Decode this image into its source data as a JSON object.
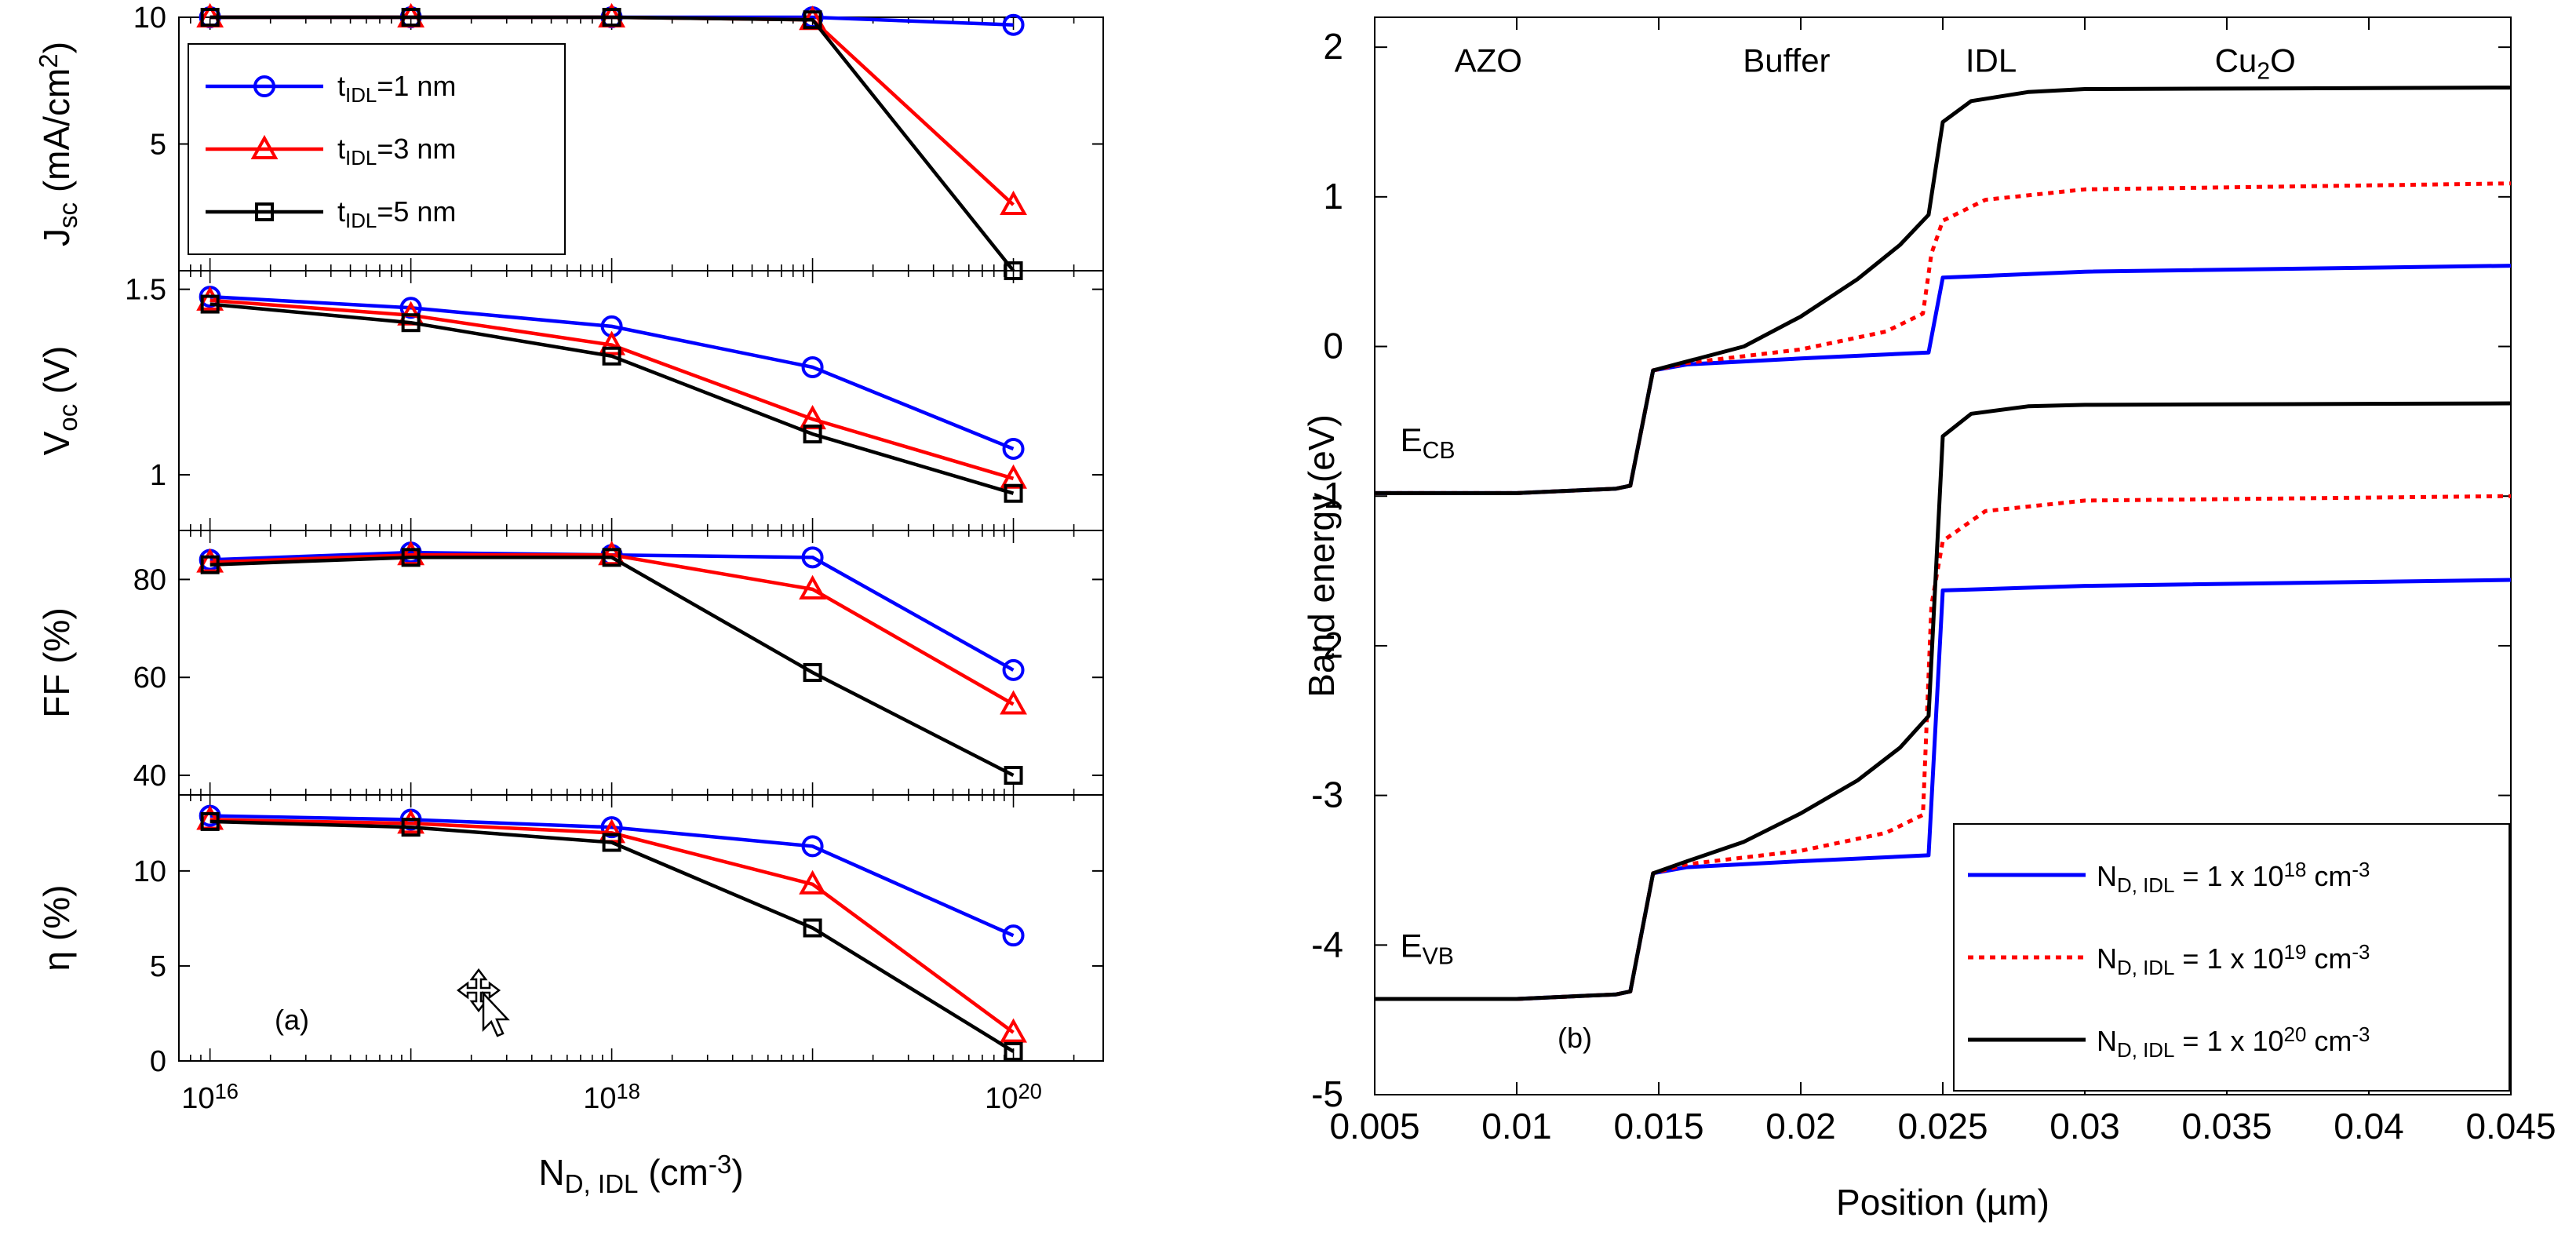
{
  "colors": {
    "series1": "#0000ff",
    "series2": "#ff0000",
    "series3": "#000000",
    "axis": "#000000",
    "background": "#ffffff"
  },
  "chart_data": [
    {
      "type": "line",
      "panel_label": "(a)",
      "x_scale": "log",
      "x": [
        1e+16,
        1e+17,
        1e+18,
        1e+19,
        1e+20
      ],
      "x_tick_labels": [
        "10",
        "10",
        "10"
      ],
      "x_tick_exponents": [
        "16",
        "18",
        "20"
      ],
      "xlabel": {
        "main": "N",
        "sub": "D, IDL",
        "tail": " (cm",
        "sup": "-3",
        "end": ")"
      },
      "legend": [
        {
          "pre": "t",
          "sub": "IDL",
          "post": "=1 nm",
          "marker": "circle"
        },
        {
          "pre": "t",
          "sub": "IDL",
          "post": "=3 nm",
          "marker": "triangle"
        },
        {
          "pre": "t",
          "sub": "IDL",
          "post": "=5 nm",
          "marker": "square"
        }
      ],
      "legend_position": "top-left",
      "subplots": [
        {
          "ylabel": {
            "main": "J",
            "sub": "sc",
            "tail": " (mA/cm",
            "sup": "2",
            "end": ")"
          },
          "ylim": [
            0,
            10
          ],
          "yticks": [
            "5",
            "10"
          ],
          "ytick_values": [
            5,
            10
          ],
          "series": [
            {
              "name": "tIDL=1 nm",
              "values": [
                10,
                10,
                10,
                10,
                9.7
              ]
            },
            {
              "name": "tIDL=3 nm",
              "values": [
                10,
                10,
                10,
                9.9,
                2.6
              ]
            },
            {
              "name": "tIDL=5 nm",
              "values": [
                10,
                10,
                10,
                9.9,
                0
              ]
            }
          ]
        },
        {
          "ylabel": {
            "main": "V",
            "sub": "oc",
            "tail": " (V)",
            "sup": "",
            "end": ""
          },
          "ylim": [
            0.85,
            1.55
          ],
          "yticks": [
            "1",
            "1.5"
          ],
          "ytick_values": [
            1,
            1.5
          ],
          "series": [
            {
              "name": "tIDL=1 nm",
              "values": [
                1.48,
                1.45,
                1.4,
                1.29,
                1.07
              ]
            },
            {
              "name": "tIDL=3 nm",
              "values": [
                1.47,
                1.43,
                1.35,
                1.15,
                0.99
              ]
            },
            {
              "name": "tIDL=5 nm",
              "values": [
                1.46,
                1.41,
                1.32,
                1.11,
                0.95
              ]
            }
          ]
        },
        {
          "ylabel": {
            "main": "FF (%)",
            "sub": "",
            "tail": "",
            "sup": "",
            "end": ""
          },
          "ylim": [
            36,
            90
          ],
          "yticks": [
            "40",
            "60",
            "80"
          ],
          "ytick_values": [
            40,
            60,
            80
          ],
          "series": [
            {
              "name": "tIDL=1 nm",
              "values": [
                84,
                85.5,
                85,
                84.5,
                61.5
              ]
            },
            {
              "name": "tIDL=3 nm",
              "values": [
                83.5,
                85,
                85,
                78,
                54.5
              ]
            },
            {
              "name": "tIDL=5 nm",
              "values": [
                83,
                84.5,
                84.5,
                61,
                40
              ]
            }
          ]
        },
        {
          "ylabel": {
            "main": "η (%)",
            "sub": "",
            "tail": "",
            "sup": "",
            "end": ""
          },
          "ylim": [
            0,
            14
          ],
          "yticks": [
            "0",
            "5",
            "10"
          ],
          "ytick_values": [
            0,
            5,
            10
          ],
          "series": [
            {
              "name": "tIDL=1 nm",
              "values": [
                12.9,
                12.7,
                12.3,
                11.3,
                6.6
              ]
            },
            {
              "name": "tIDL=3 nm",
              "values": [
                12.7,
                12.5,
                12.0,
                9.3,
                1.5
              ]
            },
            {
              "name": "tIDL=5 nm",
              "values": [
                12.6,
                12.3,
                11.5,
                7.0,
                0.5
              ]
            }
          ]
        }
      ]
    },
    {
      "type": "line",
      "panel_label": "(b)",
      "xlabel": "Position (µm)",
      "ylabel": "Band energy (eV)",
      "xlim": [
        0.005,
        0.045
      ],
      "ylim": [
        -5,
        2.2
      ],
      "xticks": [
        "0.005",
        "0.01",
        "0.015",
        "0.02",
        "0.025",
        "0.03",
        "0.035",
        "0.04",
        "0.045"
      ],
      "xtick_values": [
        0.005,
        0.01,
        0.015,
        0.02,
        0.025,
        0.03,
        0.035,
        0.04,
        0.045
      ],
      "yticks": [
        "-5",
        "-4",
        "-3",
        "-2",
        "-1",
        "0",
        "1",
        "2"
      ],
      "ytick_values": [
        -5,
        -4,
        -3,
        -2,
        -1,
        0,
        1,
        2
      ],
      "regions": [
        {
          "text": "AZO",
          "x": 0.009,
          "y": 1.92
        },
        {
          "text": "Buffer",
          "x": 0.0195,
          "y": 1.92
        },
        {
          "text": "IDL",
          "x": 0.0267,
          "y": 1.92
        },
        {
          "text": "Cu",
          "sub": "2",
          "post": "O",
          "x": 0.036,
          "y": 1.92
        }
      ],
      "band_labels": [
        {
          "main": "E",
          "sub": "CB",
          "x": 0.0059,
          "y": -0.7
        },
        {
          "main": "E",
          "sub": "VB",
          "x": 0.0059,
          "y": -4.08
        }
      ],
      "legend": [
        {
          "pre": "N",
          "sub": "D, IDL",
          "mid": " = 1 x 10",
          "sup": "18",
          "post": " cm",
          "sup2": "-3",
          "style": "solid"
        },
        {
          "pre": "N",
          "sub": "D, IDL",
          "mid": " = 1 x 10",
          "sup": "19",
          "post": " cm",
          "sup2": "-3",
          "style": "dotted"
        },
        {
          "pre": "N",
          "sub": "D, IDL",
          "mid": " = 1 x 10",
          "sup": "20",
          "post": " cm",
          "sup2": "-3",
          "style": "solid"
        }
      ],
      "legend_position": "bottom-right",
      "series": [
        {
          "name": "ND,IDL = 1 x 10^18 cm^-3 (CB)",
          "x": [
            0.005,
            0.01,
            0.0135,
            0.014,
            0.0148,
            0.016,
            0.02,
            0.0245,
            0.025,
            0.03,
            0.045
          ],
          "y": [
            -0.98,
            -0.98,
            -0.95,
            -0.93,
            -0.16,
            -0.12,
            -0.08,
            -0.04,
            0.46,
            0.5,
            0.54
          ]
        },
        {
          "name": "ND,IDL = 1 x 10^18 cm^-3 (VB)",
          "x": [
            0.005,
            0.01,
            0.0135,
            0.014,
            0.0148,
            0.016,
            0.02,
            0.0245,
            0.025,
            0.03,
            0.045
          ],
          "y": [
            -4.36,
            -4.36,
            -4.33,
            -4.31,
            -3.52,
            -3.48,
            -3.44,
            -3.4,
            -1.63,
            -1.6,
            -1.56
          ]
        },
        {
          "name": "ND,IDL = 1 x 10^19 cm^-3 (CB)",
          "x": [
            0.005,
            0.01,
            0.0135,
            0.014,
            0.0148,
            0.016,
            0.02,
            0.023,
            0.0243,
            0.0246,
            0.025,
            0.0265,
            0.03,
            0.045
          ],
          "y": [
            -0.98,
            -0.98,
            -0.95,
            -0.93,
            -0.16,
            -0.11,
            -0.02,
            0.1,
            0.22,
            0.62,
            0.84,
            0.98,
            1.05,
            1.09
          ]
        },
        {
          "name": "ND,IDL = 1 x 10^19 cm^-3 (VB)",
          "x": [
            0.005,
            0.01,
            0.0135,
            0.014,
            0.0148,
            0.016,
            0.02,
            0.023,
            0.0243,
            0.0246,
            0.025,
            0.0265,
            0.03,
            0.045
          ],
          "y": [
            -4.36,
            -4.36,
            -4.33,
            -4.31,
            -3.52,
            -3.46,
            -3.37,
            -3.25,
            -3.13,
            -1.73,
            -1.3,
            -1.1,
            -1.03,
            -1.0
          ]
        },
        {
          "name": "ND,IDL = 1 x 10^20 cm^-3 (CB)",
          "x": [
            0.005,
            0.01,
            0.0135,
            0.014,
            0.0148,
            0.016,
            0.018,
            0.02,
            0.022,
            0.0235,
            0.0245,
            0.025,
            0.026,
            0.028,
            0.03,
            0.045
          ],
          "y": [
            -0.98,
            -0.98,
            -0.95,
            -0.93,
            -0.16,
            -0.1,
            0.0,
            0.2,
            0.45,
            0.68,
            0.88,
            1.5,
            1.64,
            1.7,
            1.72,
            1.73
          ]
        },
        {
          "name": "ND,IDL = 1 x 10^20 cm^-3 (VB)",
          "x": [
            0.005,
            0.01,
            0.0135,
            0.014,
            0.0148,
            0.016,
            0.018,
            0.02,
            0.022,
            0.0235,
            0.0245,
            0.025,
            0.026,
            0.028,
            0.03,
            0.045
          ],
          "y": [
            -4.36,
            -4.36,
            -4.33,
            -4.31,
            -3.52,
            -3.44,
            -3.31,
            -3.12,
            -2.9,
            -2.68,
            -2.47,
            -0.6,
            -0.45,
            -0.4,
            -0.39,
            -0.38
          ]
        }
      ]
    }
  ]
}
